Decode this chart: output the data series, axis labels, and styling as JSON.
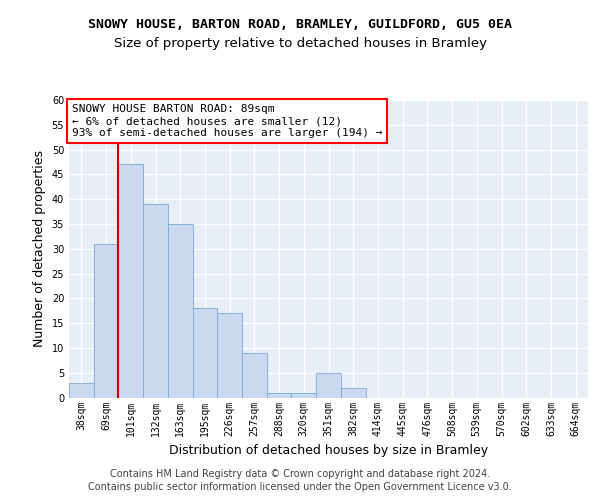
{
  "title1": "SNOWY HOUSE, BARTON ROAD, BRAMLEY, GUILDFORD, GU5 0EA",
  "title2": "Size of property relative to detached houses in Bramley",
  "xlabel": "Distribution of detached houses by size in Bramley",
  "ylabel": "Number of detached properties",
  "categories": [
    "38sqm",
    "69sqm",
    "101sqm",
    "132sqm",
    "163sqm",
    "195sqm",
    "226sqm",
    "257sqm",
    "288sqm",
    "320sqm",
    "351sqm",
    "382sqm",
    "414sqm",
    "445sqm",
    "476sqm",
    "508sqm",
    "539sqm",
    "570sqm",
    "602sqm",
    "633sqm",
    "664sqm"
  ],
  "values": [
    3,
    31,
    47,
    39,
    35,
    18,
    17,
    9,
    1,
    1,
    5,
    2,
    0,
    0,
    0,
    0,
    0,
    0,
    0,
    0,
    0
  ],
  "bar_color": "#cad9f0",
  "bar_edge_color": "#7aabd6",
  "annotation_line1": "SNOWY HOUSE BARTON ROAD: 89sqm",
  "annotation_line2": "← 6% of detached houses are smaller (12)",
  "annotation_line3": "93% of semi-detached houses are larger (194) →",
  "annotation_box_color": "white",
  "annotation_box_edge_color": "red",
  "ylim": [
    0,
    60
  ],
  "yticks": [
    0,
    5,
    10,
    15,
    20,
    25,
    30,
    35,
    40,
    45,
    50,
    55,
    60
  ],
  "footnote1": "Contains HM Land Registry data © Crown copyright and database right 2024.",
  "footnote2": "Contains public sector information licensed under the Open Government Licence v3.0.",
  "plot_bg_color": "#e8eef8",
  "red_line_x": 1.5,
  "title1_fontsize": 9.5,
  "title2_fontsize": 9.5,
  "axis_label_fontsize": 9,
  "tick_fontsize": 7,
  "annotation_fontsize": 8,
  "footnote_fontsize": 7
}
